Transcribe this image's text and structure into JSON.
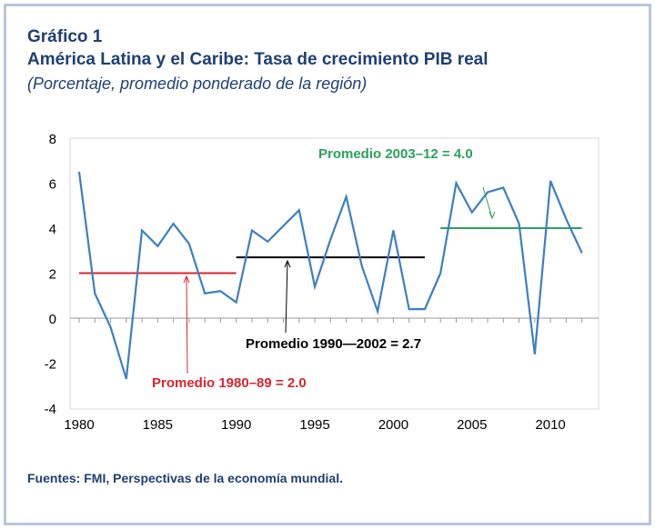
{
  "chart_data": {
    "type": "line",
    "title": "Gráfico 1",
    "subtitle": "América Latina y el Caribe: Tasa de crecimiento PIB real",
    "subtitle2": "(Porcentaje, promedio ponderado de la  región)",
    "source": "Fuentes: FMI, Perspectivas de la economía mundial.",
    "x": [
      1980,
      1981,
      1982,
      1983,
      1984,
      1985,
      1986,
      1987,
      1988,
      1989,
      1990,
      1991,
      1992,
      1993,
      1994,
      1995,
      1996,
      1997,
      1998,
      1999,
      2000,
      2001,
      2002,
      2003,
      2004,
      2005,
      2006,
      2007,
      2008,
      2009,
      2010,
      2011,
      2012
    ],
    "values": [
      6.5,
      1.1,
      -0.4,
      -2.7,
      3.9,
      3.2,
      4.2,
      3.3,
      1.1,
      1.2,
      0.7,
      3.9,
      3.4,
      4.1,
      4.8,
      1.4,
      3.5,
      5.4,
      2.3,
      0.3,
      3.9,
      0.4,
      0.4,
      2.0,
      6.0,
      4.7,
      5.6,
      5.8,
      4.2,
      -1.6,
      6.1,
      4.4,
      2.9
    ],
    "ylim": [
      -4,
      8
    ],
    "yticks": [
      "8",
      "6",
      "4",
      "2",
      "0",
      "-2",
      "-4"
    ],
    "xticks": [
      "1980",
      "1985",
      "1990",
      "1995",
      "2000",
      "2005",
      "2010"
    ],
    "averages": [
      {
        "label": "Promedio 1980–89 = 2.0",
        "from": 1980,
        "to": 1990,
        "value": 2.0,
        "color": "#d7262e"
      },
      {
        "label": "Promedio 1990—2002 = 2.7",
        "from": 1990,
        "to": 2002,
        "value": 2.7,
        "color": "#000000"
      },
      {
        "label": "Promedio 2003–12 = 4.0",
        "from": 2003,
        "to": 2012,
        "value": 4.0,
        "color": "#2ba25a"
      }
    ],
    "line_color": "#3b7fc4"
  }
}
